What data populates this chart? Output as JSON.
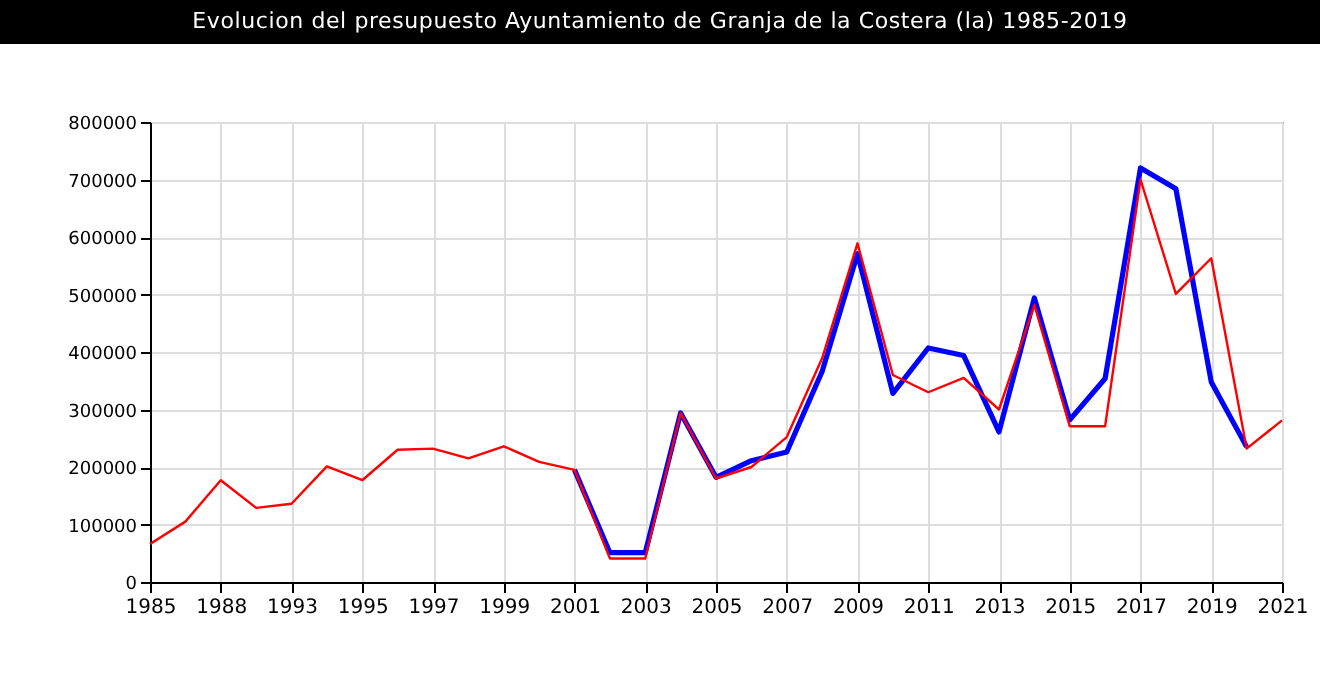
{
  "chart_data": {
    "type": "line",
    "title": "Evolucion del presupuesto Ayuntamiento de Granja de la Costera (la) 1985-2019",
    "categories": [
      "1985",
      null,
      "1988",
      null,
      "1993",
      null,
      "1995",
      null,
      "1997",
      null,
      "1999",
      null,
      "2001",
      null,
      "2003",
      null,
      "2005",
      null,
      "2007",
      null,
      "2009",
      null,
      "2011",
      null,
      "2013",
      null,
      "2015",
      null,
      "2017",
      null,
      "2019",
      null,
      "2021"
    ],
    "series": [
      {
        "color": "#0000ff",
        "values": [
          null,
          null,
          null,
          null,
          null,
          null,
          null,
          null,
          null,
          null,
          null,
          null,
          195000,
          51000,
          51000,
          294000,
          182000,
          211000,
          226000,
          366000,
          571000,
          328000,
          407000,
          394000,
          261000,
          494000,
          282000,
          354000,
          720000,
          684000,
          348000,
          235000,
          null
        ]
      },
      {
        "color": "#ff0000",
        "values": [
          66000,
          105000,
          177000,
          129000,
          136000,
          201000,
          177000,
          230000,
          232000,
          215000,
          236000,
          209000,
          195000,
          41000,
          41000,
          294000,
          180000,
          200000,
          252000,
          389000,
          589000,
          360000,
          330000,
          355000,
          300000,
          482000,
          271000,
          271000,
          700000,
          501000,
          563000,
          232000,
          281000
        ]
      }
    ],
    "ylim": [
      0,
      800000
    ],
    "yticks": [
      0,
      100000,
      200000,
      300000,
      400000,
      500000,
      600000,
      700000,
      800000
    ],
    "grid": true
  }
}
